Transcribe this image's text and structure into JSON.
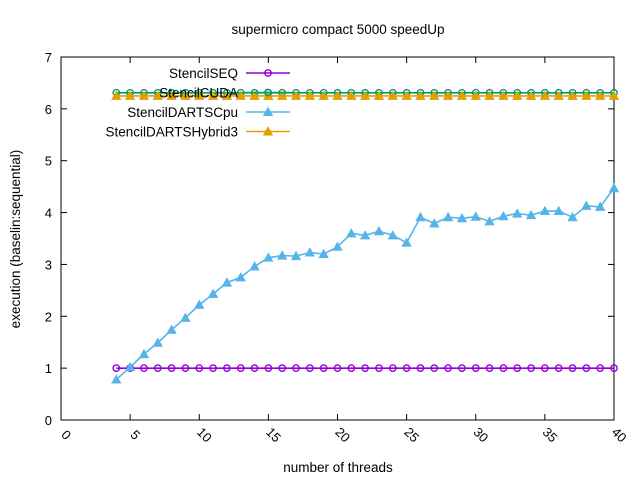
{
  "chart_data": {
    "type": "line",
    "title": "supermicro compact 5000 speedUp",
    "xlabel": "number of threads",
    "ylabel": "execution (baselin:sequential)",
    "xlim": [
      0,
      40
    ],
    "ylim": [
      0,
      7
    ],
    "xticks": [
      0,
      5,
      10,
      15,
      20,
      25,
      30,
      35,
      40
    ],
    "yticks": [
      0,
      1,
      2,
      3,
      4,
      5,
      6,
      7
    ],
    "xtick_labels": [
      "0",
      "5",
      "10",
      "15",
      "20",
      "25",
      "30",
      "35",
      "40"
    ],
    "ytick_labels": [
      "0",
      "1",
      "2",
      "3",
      "4",
      "5",
      "6",
      "7"
    ],
    "grid": false,
    "legend_position": "top-left",
    "x": [
      4,
      5,
      6,
      7,
      8,
      9,
      10,
      11,
      12,
      13,
      14,
      15,
      16,
      17,
      18,
      19,
      20,
      21,
      22,
      23,
      24,
      25,
      26,
      27,
      28,
      29,
      30,
      31,
      32,
      33,
      34,
      35,
      36,
      37,
      38,
      39,
      40
    ],
    "series": [
      {
        "name": "StencilSEQ",
        "color": "#9400d3",
        "marker": "circle",
        "values": [
          1,
          1,
          1,
          1,
          1,
          1,
          1,
          1,
          1,
          1,
          1,
          1,
          1,
          1,
          1,
          1,
          1,
          1,
          1,
          1,
          1,
          1,
          1,
          1,
          1,
          1,
          1,
          1,
          1,
          1,
          1,
          1,
          1,
          1,
          1,
          1,
          1
        ]
      },
      {
        "name": "StencilCUDA",
        "color": "#009e73",
        "marker": "circle",
        "values": [
          6.31,
          6.31,
          6.31,
          6.31,
          6.31,
          6.31,
          6.31,
          6.31,
          6.31,
          6.31,
          6.31,
          6.31,
          6.31,
          6.31,
          6.31,
          6.31,
          6.31,
          6.31,
          6.31,
          6.31,
          6.31,
          6.31,
          6.31,
          6.31,
          6.31,
          6.31,
          6.31,
          6.31,
          6.31,
          6.31,
          6.31,
          6.31,
          6.31,
          6.31,
          6.31,
          6.31,
          6.31
        ]
      },
      {
        "name": "StencilDARTSCpu",
        "color": "#56b4e9",
        "marker": "triangle",
        "values": [
          0.78,
          1.02,
          1.27,
          1.49,
          1.74,
          1.97,
          2.22,
          2.43,
          2.65,
          2.75,
          2.96,
          3.13,
          3.17,
          3.16,
          3.23,
          3.2,
          3.34,
          3.6,
          3.56,
          3.64,
          3.56,
          3.42,
          3.91,
          3.79,
          3.91,
          3.89,
          3.92,
          3.83,
          3.93,
          3.98,
          3.95,
          4.03,
          4.03,
          3.91,
          4.13,
          4.11,
          4.47
        ]
      },
      {
        "name": "StencilDARTSHybrid3",
        "color": "#e69f00",
        "marker": "triangle",
        "values": [
          6.25,
          6.25,
          6.25,
          6.25,
          6.25,
          6.25,
          6.25,
          6.25,
          6.25,
          6.25,
          6.25,
          6.25,
          6.25,
          6.25,
          6.25,
          6.25,
          6.25,
          6.25,
          6.25,
          6.25,
          6.25,
          6.25,
          6.25,
          6.25,
          6.25,
          6.25,
          6.25,
          6.25,
          6.25,
          6.25,
          6.25,
          6.25,
          6.25,
          6.25,
          6.25,
          6.25,
          6.25
        ]
      }
    ]
  }
}
